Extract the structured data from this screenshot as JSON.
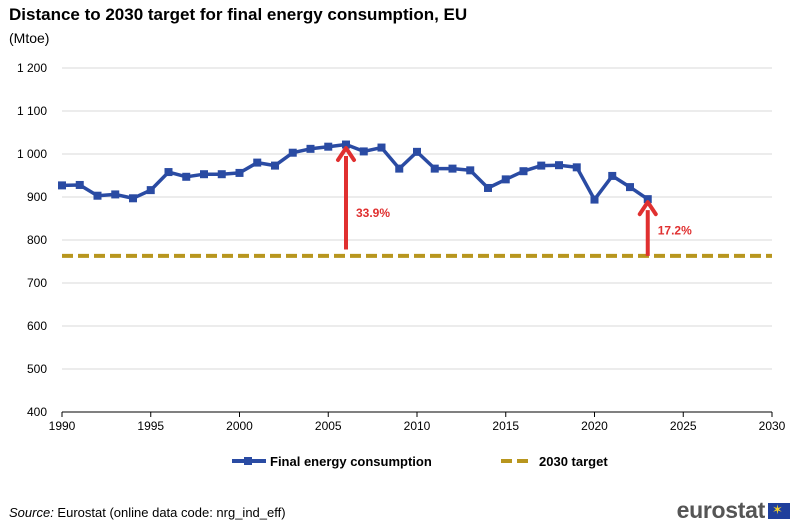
{
  "title": "Distance to 2030 target for final energy consumption, EU",
  "subtitle": "(Mtoe)",
  "chart_data": {
    "type": "line",
    "x": [
      1990,
      1991,
      1992,
      1993,
      1994,
      1995,
      1996,
      1997,
      1998,
      1999,
      2000,
      2001,
      2002,
      2003,
      2004,
      2005,
      2006,
      2007,
      2008,
      2009,
      2010,
      2011,
      2012,
      2013,
      2014,
      2015,
      2016,
      2017,
      2018,
      2019,
      2020,
      2021,
      2022,
      2023
    ],
    "series": [
      {
        "name": "Final energy consumption",
        "color": "#2a4ba3",
        "values": [
          927,
          928,
          903,
          906,
          897,
          916,
          958,
          947,
          953,
          953,
          956,
          980,
          973,
          1003,
          1012,
          1017,
          1022,
          1006,
          1015,
          966,
          1005,
          966,
          966,
          962,
          921,
          941,
          960,
          973,
          974,
          969,
          894,
          949,
          923,
          895
        ]
      },
      {
        "name": "2030 target",
        "color": "#b8961e",
        "style": "dashed",
        "values_constant": 763
      }
    ],
    "xlim": [
      1990,
      2030
    ],
    "ylim": [
      400,
      1200
    ],
    "x_ticks": [
      "1990",
      "1995",
      "2000",
      "2005",
      "2010",
      "2015",
      "2020",
      "2025",
      "2030"
    ],
    "y_ticks": [
      "400",
      "500",
      "600",
      "700",
      "800",
      "900",
      "1 000",
      "1 100",
      "1 200"
    ],
    "grid": "horizontal",
    "annotations": [
      {
        "year": 2006,
        "from": 778,
        "to": 1014,
        "text": "33.9%",
        "color": "#e03030"
      },
      {
        "year": 2023,
        "from": 763,
        "to": 888,
        "text": "17.2%",
        "color": "#e03030"
      }
    ],
    "xlabel": "",
    "ylabel": ""
  },
  "legend": {
    "fec_label": "Final energy consumption",
    "target_label": "2030 target"
  },
  "source": {
    "label": "Source:",
    "text": " Eurostat (online data code: nrg_ind_eff)"
  },
  "logo": {
    "text": "eurostat"
  }
}
